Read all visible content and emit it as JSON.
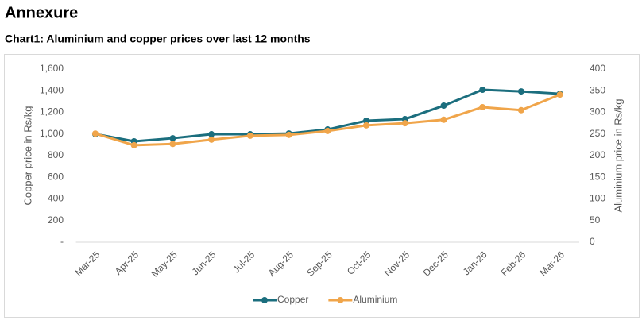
{
  "header": {
    "title": "Annexure"
  },
  "chart_data": {
    "type": "line",
    "title": "Chart1: Aluminium and copper prices over last 12 months",
    "ylabel": "Copper price in Rs/kg",
    "y2label": "Aluminium price in Rs/kg",
    "categories": [
      "Mar-25",
      "Apr-25",
      "May-25",
      "Jun-25",
      "Jul-25",
      "Aug-25",
      "Sep-25",
      "Oct-25",
      "Nov-25",
      "Dec-25",
      "Jan-26",
      "Feb-26",
      "Mar-26"
    ],
    "series": [
      {
        "name": "Copper",
        "color": "#1b6e7e",
        "values": [
          1000,
          932,
          961,
          998,
          998,
          1005,
          1042,
          1123,
          1138,
          1262,
          1409,
          1394,
          1372
        ]
      },
      {
        "name": "Aluminium",
        "color": "#f0a54a",
        "axis": "y2",
        "values": [
          251,
          224,
          227,
          237,
          246,
          248,
          257,
          270,
          275,
          283,
          312,
          305,
          341
        ]
      }
    ],
    "ylim": [
      0,
      1600
    ],
    "yticks": [
      {
        "value": 0,
        "label": "-"
      },
      200,
      400,
      600,
      800,
      {
        "value": 1000,
        "label": "1,000"
      },
      {
        "value": 1200,
        "label": "1,200"
      },
      {
        "value": 1400,
        "label": "1,400"
      },
      {
        "value": 1600,
        "label": "1,600"
      }
    ],
    "y2lim": [
      0,
      400
    ],
    "y2ticks": [
      0,
      50,
      100,
      150,
      200,
      250,
      300,
      350,
      400
    ],
    "grid": false,
    "legend": "bottom"
  }
}
